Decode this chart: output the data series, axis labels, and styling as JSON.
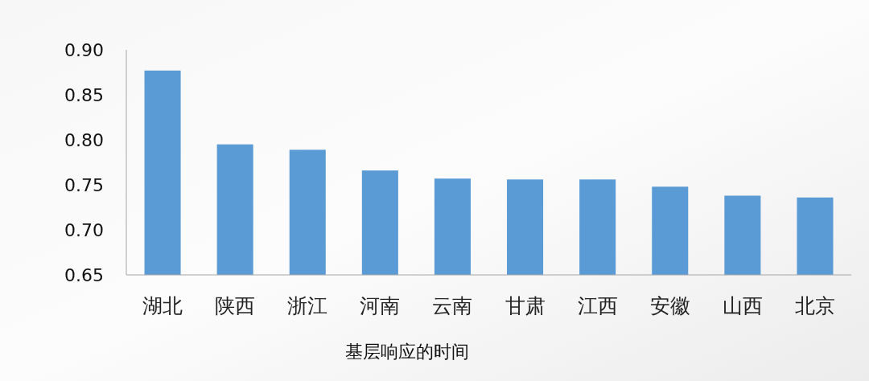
{
  "chart_data": {
    "type": "bar",
    "xlabel": "基层响应的时间",
    "categories": [
      "湖北",
      "陕西",
      "浙江",
      "河南",
      "云南",
      "甘肃",
      "江西",
      "安徽",
      "山西",
      "北京"
    ],
    "values": [
      0.877,
      0.795,
      0.789,
      0.766,
      0.757,
      0.756,
      0.756,
      0.748,
      0.738,
      0.736
    ],
    "color": "#5b9bd5",
    "ylim": [
      0.65,
      0.9
    ],
    "yticks": [
      {
        "value": 0.65,
        "label": "0.65"
      },
      {
        "value": 0.7,
        "label": "0.70"
      },
      0.75,
      {
        "value": 0.8,
        "label": "0.80"
      },
      0.85,
      {
        "value": 0.9,
        "label": "0.90"
      }
    ]
  }
}
